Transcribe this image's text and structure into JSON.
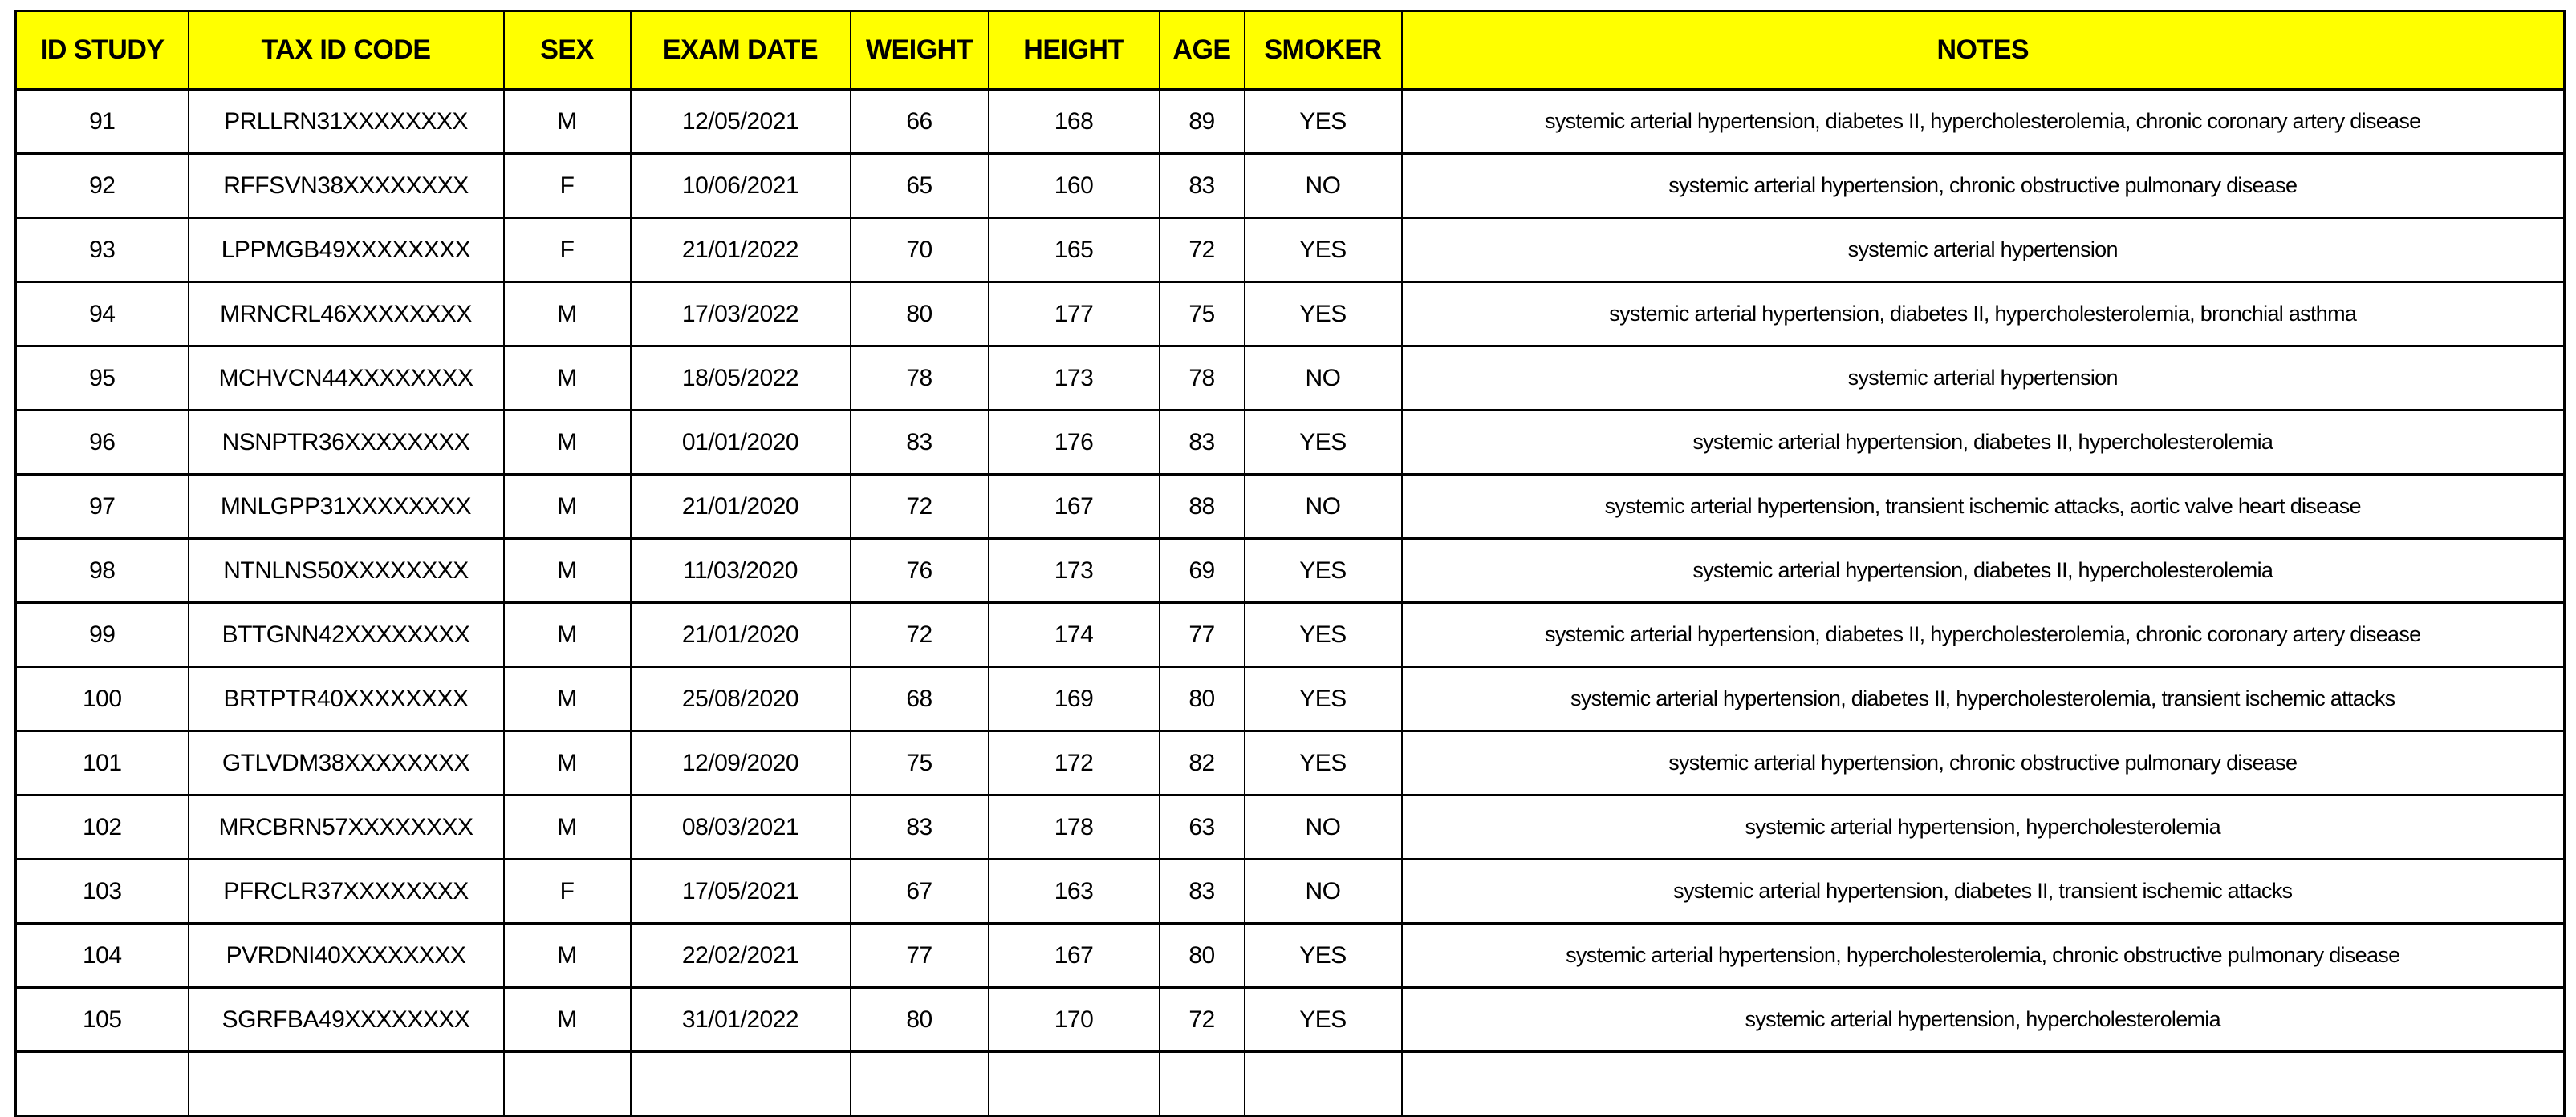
{
  "colors": {
    "header_bg": "#ffff00",
    "header_text": "#000000",
    "border": "#000000",
    "cell_bg": "#ffffff"
  },
  "table": {
    "columns": [
      {
        "key": "id_study",
        "label": "ID STUDY"
      },
      {
        "key": "tax_id_code",
        "label": "TAX ID CODE"
      },
      {
        "key": "sex",
        "label": "SEX"
      },
      {
        "key": "exam_date",
        "label": "EXAM DATE"
      },
      {
        "key": "weight",
        "label": "WEIGHT"
      },
      {
        "key": "height",
        "label": "HEIGHT"
      },
      {
        "key": "age",
        "label": "AGE"
      },
      {
        "key": "smoker",
        "label": "SMOKER"
      },
      {
        "key": "notes",
        "label": "NOTES"
      }
    ],
    "rows": [
      {
        "id_study": "91",
        "tax_id_code": "PRLLRN31XXXXXXXX",
        "sex": "M",
        "exam_date": "12/05/2021",
        "weight": "66",
        "height": "168",
        "age": "89",
        "smoker": "YES",
        "notes": "systemic arterial hypertension, diabetes II, hypercholesterolemia, chronic coronary artery disease"
      },
      {
        "id_study": "92",
        "tax_id_code": "RFFSVN38XXXXXXXX",
        "sex": "F",
        "exam_date": "10/06/2021",
        "weight": "65",
        "height": "160",
        "age": "83",
        "smoker": "NO",
        "notes": "systemic arterial hypertension, chronic obstructive pulmonary disease"
      },
      {
        "id_study": "93",
        "tax_id_code": "LPPMGB49XXXXXXXX",
        "sex": "F",
        "exam_date": "21/01/2022",
        "weight": "70",
        "height": "165",
        "age": "72",
        "smoker": "YES",
        "notes": "systemic arterial hypertension"
      },
      {
        "id_study": "94",
        "tax_id_code": "MRNCRL46XXXXXXXX",
        "sex": "M",
        "exam_date": "17/03/2022",
        "weight": "80",
        "height": "177",
        "age": "75",
        "smoker": "YES",
        "notes": "systemic arterial hypertension, diabetes II, hypercholesterolemia, bronchial asthma"
      },
      {
        "id_study": "95",
        "tax_id_code": "MCHVCN44XXXXXXXX",
        "sex": "M",
        "exam_date": "18/05/2022",
        "weight": "78",
        "height": "173",
        "age": "78",
        "smoker": "NO",
        "notes": "systemic arterial hypertension"
      },
      {
        "id_study": "96",
        "tax_id_code": "NSNPTR36XXXXXXXX",
        "sex": "M",
        "exam_date": "01/01/2020",
        "weight": "83",
        "height": "176",
        "age": "83",
        "smoker": "YES",
        "notes": "systemic arterial hypertension, diabetes II, hypercholesterolemia"
      },
      {
        "id_study": "97",
        "tax_id_code": "MNLGPP31XXXXXXXX",
        "sex": "M",
        "exam_date": "21/01/2020",
        "weight": "72",
        "height": "167",
        "age": "88",
        "smoker": "NO",
        "notes": "systemic arterial hypertension, transient ischemic attacks, aortic valve heart disease"
      },
      {
        "id_study": "98",
        "tax_id_code": "NTNLNS50XXXXXXXX",
        "sex": "M",
        "exam_date": "11/03/2020",
        "weight": "76",
        "height": "173",
        "age": "69",
        "smoker": "YES",
        "notes": "systemic arterial hypertension, diabetes II, hypercholesterolemia"
      },
      {
        "id_study": "99",
        "tax_id_code": "BTTGNN42XXXXXXXX",
        "sex": "M",
        "exam_date": "21/01/2020",
        "weight": "72",
        "height": "174",
        "age": "77",
        "smoker": "YES",
        "notes": "systemic arterial hypertension, diabetes II, hypercholesterolemia, chronic coronary artery disease"
      },
      {
        "id_study": "100",
        "tax_id_code": "BRTPTR40XXXXXXXX",
        "sex": "M",
        "exam_date": "25/08/2020",
        "weight": "68",
        "height": "169",
        "age": "80",
        "smoker": "YES",
        "notes": "systemic arterial hypertension, diabetes II, hypercholesterolemia, transient ischemic attacks"
      },
      {
        "id_study": "101",
        "tax_id_code": "GTLVDM38XXXXXXXX",
        "sex": "M",
        "exam_date": "12/09/2020",
        "weight": "75",
        "height": "172",
        "age": "82",
        "smoker": "YES",
        "notes": "systemic arterial hypertension, chronic obstructive pulmonary disease"
      },
      {
        "id_study": "102",
        "tax_id_code": "MRCBRN57XXXXXXXX",
        "sex": "M",
        "exam_date": "08/03/2021",
        "weight": "83",
        "height": "178",
        "age": "63",
        "smoker": "NO",
        "notes": "systemic arterial hypertension, hypercholesterolemia"
      },
      {
        "id_study": "103",
        "tax_id_code": "PFRCLR37XXXXXXXX",
        "sex": "F",
        "exam_date": "17/05/2021",
        "weight": "67",
        "height": "163",
        "age": "83",
        "smoker": "NO",
        "notes": "systemic arterial hypertension, diabetes II, transient ischemic attacks"
      },
      {
        "id_study": "104",
        "tax_id_code": "PVRDNI40XXXXXXXX",
        "sex": "M",
        "exam_date": "22/02/2021",
        "weight": "77",
        "height": "167",
        "age": "80",
        "smoker": "YES",
        "notes": "systemic arterial hypertension, hypercholesterolemia, chronic obstructive pulmonary disease"
      },
      {
        "id_study": "105",
        "tax_id_code": "SGRFBA49XXXXXXXX",
        "sex": "M",
        "exam_date": "31/01/2022",
        "weight": "80",
        "height": "170",
        "age": "72",
        "smoker": "YES",
        "notes": "systemic arterial hypertension, hypercholesterolemia"
      }
    ]
  }
}
